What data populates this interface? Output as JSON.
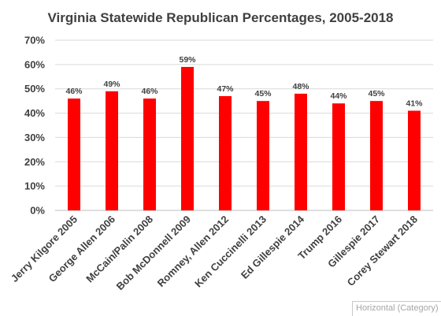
{
  "chart_data": {
    "type": "bar",
    "title": "Virginia Statewide Republican Percentages, 2005-2018",
    "xlabel": "",
    "ylabel": "",
    "ylim": [
      0,
      70
    ],
    "yticks": [
      "0%",
      "10%",
      "20%",
      "30%",
      "40%",
      "50%",
      "60%",
      "70%"
    ],
    "grid": true,
    "legend": "none",
    "categories": [
      "Jerry Kilgore 2005",
      "George Allen 2006",
      "McCain/Palin 2008",
      "Bob McDonnell 2009",
      "Romney, Allen 2012",
      "Ken Cuccinelli 2013",
      "Ed Gillespie 2014",
      "Trump 2016",
      "Gillespie 2017",
      "Corey Stewart 2018"
    ],
    "values": [
      46,
      49,
      46,
      59,
      47,
      45,
      48,
      44,
      45,
      41
    ],
    "data_labels": [
      "46%",
      "49%",
      "46%",
      "59%",
      "47%",
      "45%",
      "48%",
      "44%",
      "45%",
      "41%"
    ],
    "bar_color": "#ff0000"
  },
  "ui": {
    "axis_tooltip": "Horizontal (Category)"
  }
}
